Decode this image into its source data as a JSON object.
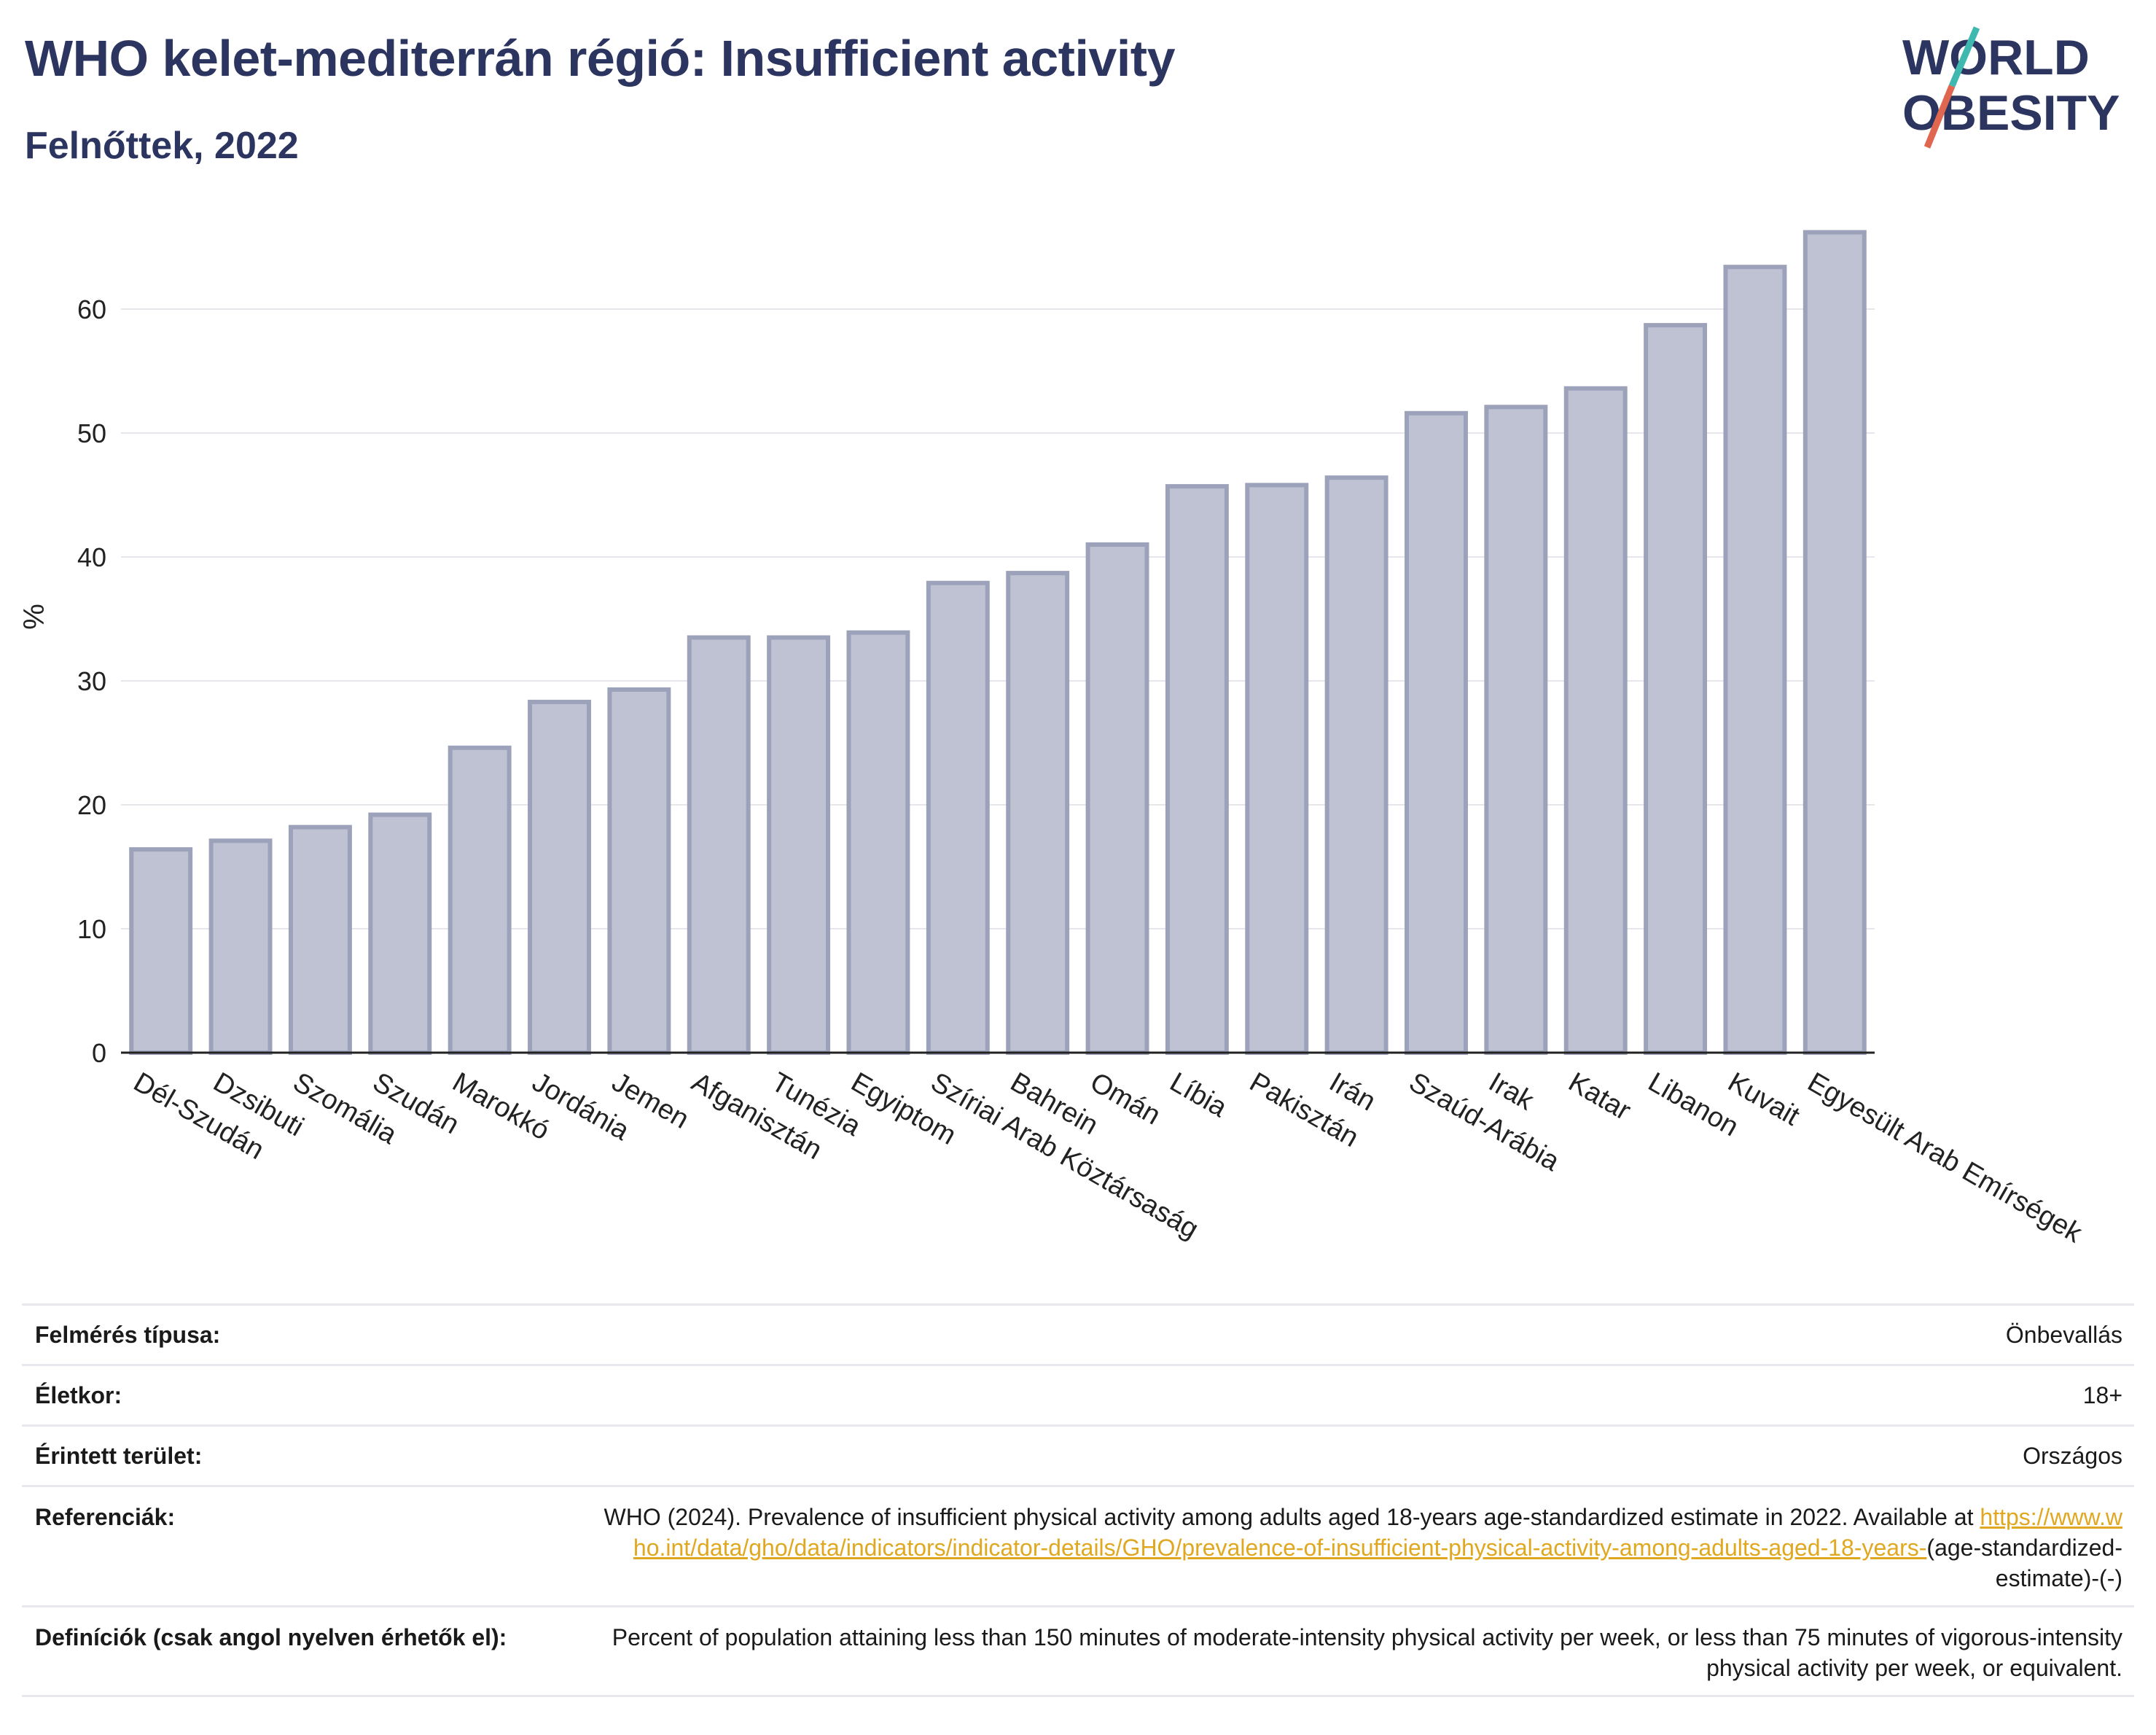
{
  "title": "WHO kelet-mediterrán régió: Insufficient activity",
  "subtitle": "Felnőttek, 2022",
  "logo": {
    "line1": "WORLD",
    "line2": "OBESITY"
  },
  "colors": {
    "bar_fill": "#bfc2d2",
    "bar_stroke": "#9da2bb",
    "title": "#2b3560",
    "accent_teal": "#3fb8b0",
    "accent_red": "#e06650",
    "link": "#e0a820"
  },
  "chart_data": {
    "type": "bar",
    "title": "",
    "xlabel": "",
    "ylabel": "%",
    "ylim": [
      0,
      68
    ],
    "yticks": [
      0,
      10,
      20,
      30,
      40,
      50,
      60
    ],
    "grid": true,
    "categories": [
      "Dél-Szudán",
      "Dzsibuti",
      "Szomália",
      "Szudán",
      "Marokkó",
      "Jordánia",
      "Jemen",
      "Afganisztán",
      "Tunézia",
      "Egyiptom",
      "Szíriai Arab Köztársaság",
      "Bahrein",
      "Omán",
      "Líbia",
      "Pakisztán",
      "Irán",
      "Szaúd-Arábia",
      "Irak",
      "Katar",
      "Libanon",
      "Kuvait",
      "Egyesült Arab Emírségek"
    ],
    "values": [
      16.4,
      17.1,
      18.2,
      19.2,
      24.6,
      28.3,
      29.3,
      33.5,
      33.5,
      33.9,
      37.9,
      38.7,
      41.0,
      45.7,
      45.8,
      46.4,
      51.6,
      52.1,
      53.6,
      58.7,
      63.4,
      66.2
    ]
  },
  "meta": {
    "survey_label": "Felmérés típusa:",
    "survey_value": "Önbevallás",
    "age_label": "Életkor:",
    "age_value": "18+",
    "area_label": "Érintett terület:",
    "area_value": "Országos",
    "ref_label": "Referenciák:",
    "ref_text": "WHO (2024). Prevalence of insufficient physical activity among adults aged 18-years age-standardized estimate in 2022. Available at",
    "ref_link": "https://www.who.int/data/gho/data/indicators/indicator-details/GHO/prevalence-of-insufficient-physical-activity-among-adults-aged-18-years-",
    "ref_tail": "(age-standardized-estimate)-(-)",
    "def_label": "Definíciók (csak angol nyelven érhetők el):",
    "def_text": "Percent of population attaining less than 150 minutes of moderate-intensity physical activity per week, or less than 75 minutes of vigorous-intensity physical activity per week, or equivalent."
  }
}
